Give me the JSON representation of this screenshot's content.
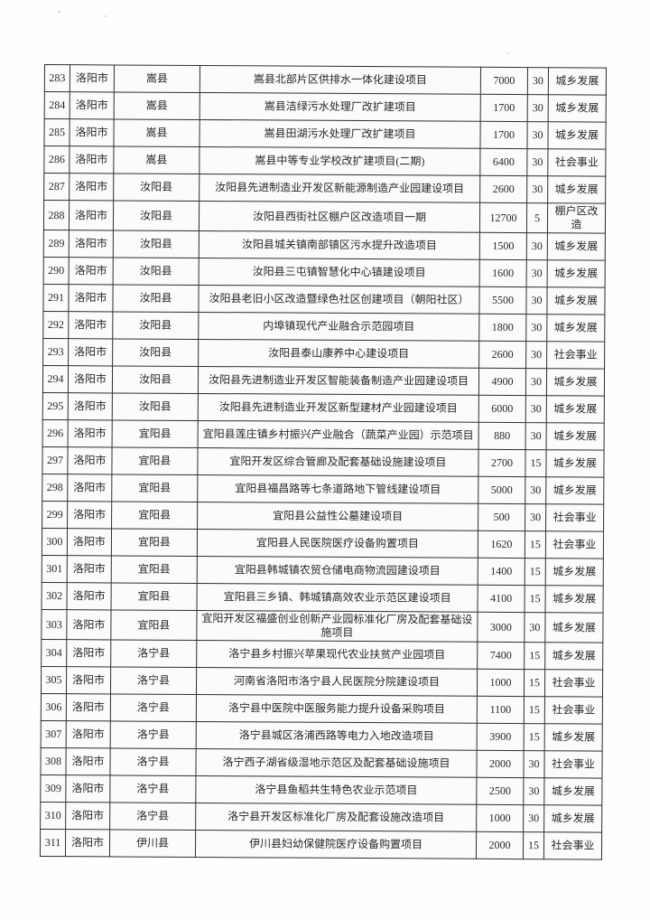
{
  "colors": {
    "paper": "#fefefe",
    "ink": "#1f1f1f",
    "grid": "#2a2a2a"
  },
  "table": {
    "column_keys": [
      "seq",
      "city",
      "county",
      "project",
      "amount",
      "years",
      "category"
    ],
    "rows": [
      {
        "seq": "283",
        "city": "洛阳市",
        "county": "嵩县",
        "project": "嵩县北部片区供排水一体化建设项目",
        "amount": "7000",
        "years": "30",
        "category": "城乡发展"
      },
      {
        "seq": "284",
        "city": "洛阳市",
        "county": "嵩县",
        "project": "嵩县洁绿污水处理厂改扩建项目",
        "amount": "1700",
        "years": "30",
        "category": "城乡发展"
      },
      {
        "seq": "285",
        "city": "洛阳市",
        "county": "嵩县",
        "project": "嵩县田湖污水处理厂改扩建项目",
        "amount": "1700",
        "years": "30",
        "category": "城乡发展"
      },
      {
        "seq": "286",
        "city": "洛阳市",
        "county": "嵩县",
        "project": "嵩县中等专业学校改扩建项目(二期)",
        "amount": "6400",
        "years": "30",
        "category": "社会事业"
      },
      {
        "seq": "287",
        "city": "洛阳市",
        "county": "汝阳县",
        "project": "汝阳县先进制造业开发区新能源制造产业园建设项目",
        "amount": "2600",
        "years": "30",
        "category": "城乡发展"
      },
      {
        "seq": "288",
        "city": "洛阳市",
        "county": "汝阳县",
        "project": "汝阳县西街社区棚户区改造项目一期",
        "amount": "12700",
        "years": "5",
        "category": "棚户区改造"
      },
      {
        "seq": "289",
        "city": "洛阳市",
        "county": "汝阳县",
        "project": "汝阳县城关镇南部镇区污水提升改造项目",
        "amount": "1500",
        "years": "30",
        "category": "城乡发展"
      },
      {
        "seq": "290",
        "city": "洛阳市",
        "county": "汝阳县",
        "project": "汝阳县三屯镇智慧化中心镇建设项目",
        "amount": "1600",
        "years": "30",
        "category": "城乡发展"
      },
      {
        "seq": "291",
        "city": "洛阳市",
        "county": "汝阳县",
        "project": "汝阳县老旧小区改造暨绿色社区创建项目（朝阳社区）",
        "amount": "5500",
        "years": "30",
        "category": "城乡发展"
      },
      {
        "seq": "292",
        "city": "洛阳市",
        "county": "汝阳县",
        "project": "内埠镇现代产业融合示范园项目",
        "amount": "1800",
        "years": "30",
        "category": "城乡发展"
      },
      {
        "seq": "293",
        "city": "洛阳市",
        "county": "汝阳县",
        "project": "汝阳县泰山康养中心建设项目",
        "amount": "2600",
        "years": "30",
        "category": "社会事业"
      },
      {
        "seq": "294",
        "city": "洛阳市",
        "county": "汝阳县",
        "project": "汝阳县先进制造业开发区智能装备制造产业园建设项目",
        "amount": "4900",
        "years": "30",
        "category": "城乡发展"
      },
      {
        "seq": "295",
        "city": "洛阳市",
        "county": "汝阳县",
        "project": "汝阳县先进制造业开发区新型建材产业园建设项目",
        "amount": "6000",
        "years": "30",
        "category": "城乡发展"
      },
      {
        "seq": "296",
        "city": "洛阳市",
        "county": "宜阳县",
        "project": "宜阳县莲庄镇乡村振兴产业融合（蔬菜产业园）示范项目",
        "amount": "880",
        "years": "30",
        "category": "城乡发展"
      },
      {
        "seq": "297",
        "city": "洛阳市",
        "county": "宜阳县",
        "project": "宜阳开发区综合管廊及配套基础设施建设项目",
        "amount": "2700",
        "years": "15",
        "category": "城乡发展"
      },
      {
        "seq": "298",
        "city": "洛阳市",
        "county": "宜阳县",
        "project": "宜阳县福昌路等七条道路地下管线建设项目",
        "amount": "5000",
        "years": "30",
        "category": "城乡发展"
      },
      {
        "seq": "299",
        "city": "洛阳市",
        "county": "宜阳县",
        "project": "宜阳县公益性公墓建设项目",
        "amount": "500",
        "years": "30",
        "category": "社会事业"
      },
      {
        "seq": "300",
        "city": "洛阳市",
        "county": "宜阳县",
        "project": "宜阳县人民医院医疗设备购置项目",
        "amount": "1620",
        "years": "15",
        "category": "社会事业"
      },
      {
        "seq": "301",
        "city": "洛阳市",
        "county": "宜阳县",
        "project": "宜阳县韩城镇农贸仓储电商物流园建设项目",
        "amount": "1400",
        "years": "15",
        "category": "城乡发展"
      },
      {
        "seq": "302",
        "city": "洛阳市",
        "county": "宜阳县",
        "project": "宜阳县三乡镇、韩城镇高效农业示范区建设项目",
        "amount": "4100",
        "years": "15",
        "category": "城乡发展"
      },
      {
        "seq": "303",
        "city": "洛阳市",
        "county": "宜阳县",
        "project": "宜阳开发区福盛创业创新产业园标准化厂房及配套基础设施项目",
        "amount": "3000",
        "years": "30",
        "category": "城乡发展"
      },
      {
        "seq": "304",
        "city": "洛阳市",
        "county": "洛宁县",
        "project": "洛宁县乡村振兴苹果现代农业扶贫产业园项目",
        "amount": "7400",
        "years": "15",
        "category": "城乡发展"
      },
      {
        "seq": "305",
        "city": "洛阳市",
        "county": "洛宁县",
        "project": "河南省洛阳市洛宁县人民医院分院建设项目",
        "amount": "1000",
        "years": "15",
        "category": "社会事业"
      },
      {
        "seq": "306",
        "city": "洛阳市",
        "county": "洛宁县",
        "project": "洛宁县中医院中医服务能力提升设备采购项目",
        "amount": "1100",
        "years": "15",
        "category": "社会事业"
      },
      {
        "seq": "307",
        "city": "洛阳市",
        "county": "洛宁县",
        "project": "洛宁县城区洛浦西路等电力入地改造项目",
        "amount": "3900",
        "years": "15",
        "category": "城乡发展"
      },
      {
        "seq": "308",
        "city": "洛阳市",
        "county": "洛宁县",
        "project": "洛宁西子湖省级湿地示范区及配套基础设施项目",
        "amount": "2000",
        "years": "30",
        "category": "社会事业"
      },
      {
        "seq": "309",
        "city": "洛阳市",
        "county": "洛宁县",
        "project": "洛宁县鱼稻共生特色农业示范项目",
        "amount": "2500",
        "years": "30",
        "category": "城乡发展"
      },
      {
        "seq": "310",
        "city": "洛阳市",
        "county": "洛宁县",
        "project": "洛宁县开发区标准化厂房及配套设施改造项目",
        "amount": "1000",
        "years": "30",
        "category": "城乡发展"
      },
      {
        "seq": "311",
        "city": "洛阳市",
        "county": "伊川县",
        "project": "伊川县妇幼保健院医疗设备购置项目",
        "amount": "2000",
        "years": "15",
        "category": "社会事业"
      }
    ]
  }
}
